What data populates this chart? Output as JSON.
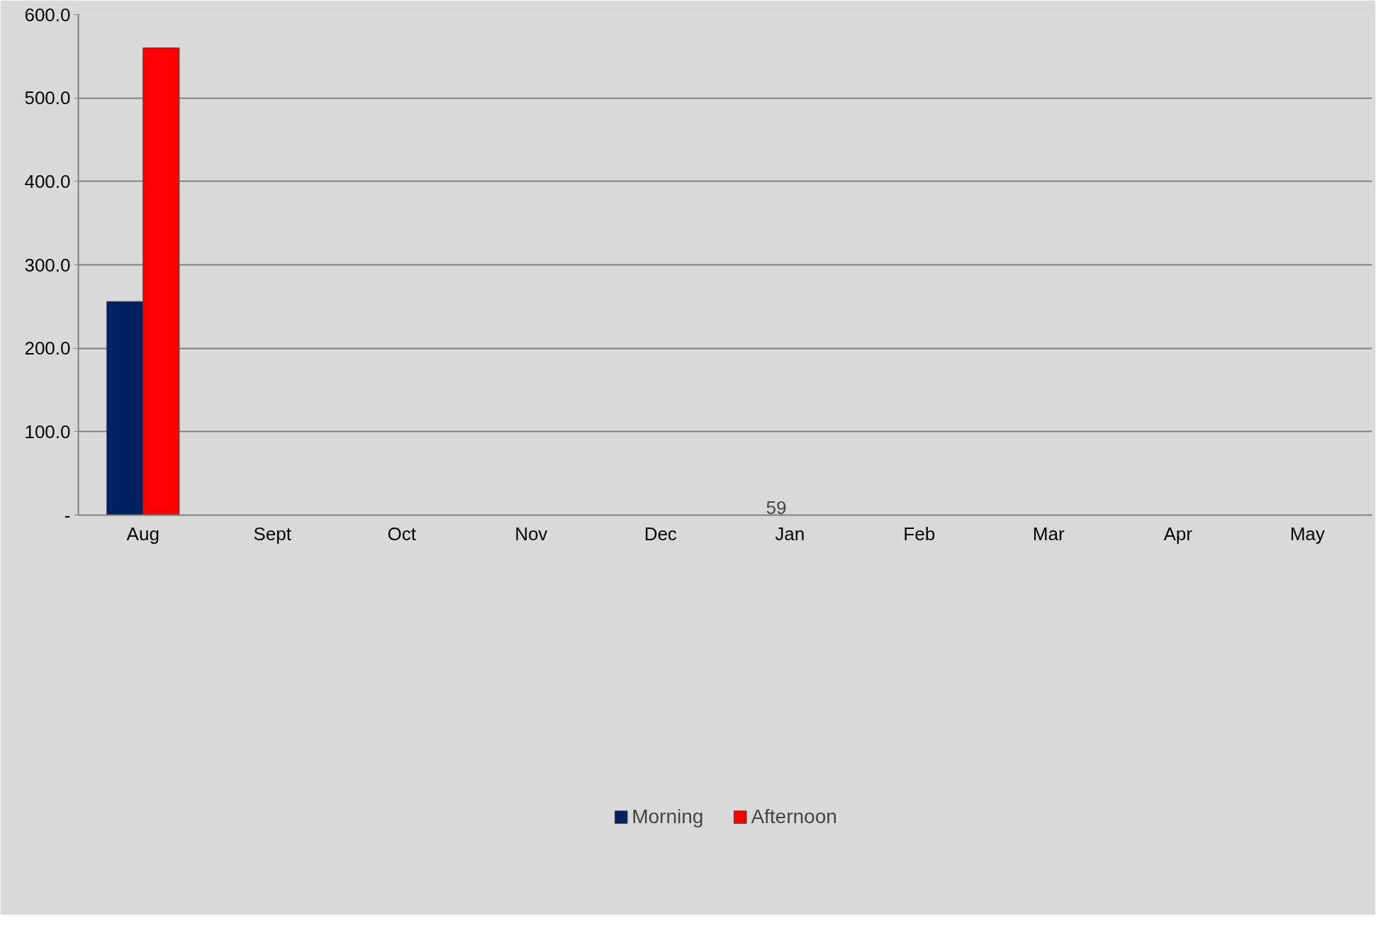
{
  "chart_data": {
    "type": "bar",
    "categories": [
      "Aug",
      "Sept",
      "Oct",
      "Nov",
      "Dec",
      "Jan",
      "Feb",
      "Mar",
      "Apr",
      "May"
    ],
    "series": [
      {
        "name": "Morning",
        "color": "#002060",
        "values": [
          256,
          null,
          null,
          null,
          null,
          null,
          null,
          null,
          null,
          null
        ]
      },
      {
        "name": "Afternoon",
        "color": "#ff0000",
        "values": [
          560,
          null,
          null,
          null,
          null,
          null,
          null,
          null,
          null,
          null
        ]
      }
    ],
    "ylim": [
      0,
      600
    ],
    "yticks": [
      {
        "value": 0,
        "label": "-"
      },
      {
        "value": 100,
        "label": "100.0"
      },
      {
        "value": 200,
        "label": "200.0"
      },
      {
        "value": 300,
        "label": "300.0"
      },
      {
        "value": 400,
        "label": "400.0"
      },
      {
        "value": 500,
        "label": "500.0"
      },
      {
        "value": 600,
        "label": "600.0"
      }
    ],
    "grid": "y",
    "legend": "bottom",
    "annotations": [
      "59"
    ]
  }
}
